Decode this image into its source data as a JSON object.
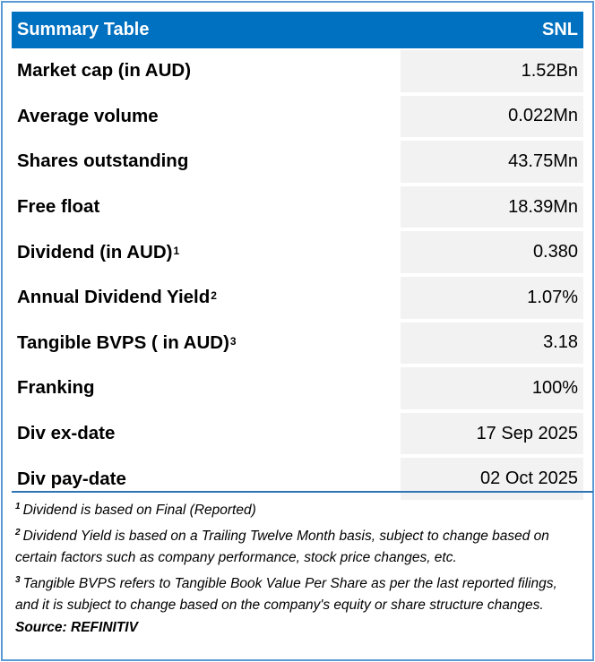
{
  "header": {
    "title": "Summary Table",
    "ticker": "SNL"
  },
  "colors": {
    "header_bg": "#0070c0",
    "value_bg": "#f2f2f2",
    "border": "#5b9bd5"
  },
  "rows": [
    {
      "label": "Market cap (in AUD)",
      "sup": "",
      "value": "1.52Bn"
    },
    {
      "label": "Average volume",
      "sup": "",
      "value": "0.022Mn"
    },
    {
      "label": "Shares outstanding",
      "sup": "",
      "value": "43.75Mn"
    },
    {
      "label": "Free float",
      "sup": "",
      "value": "18.39Mn"
    },
    {
      "label": "Dividend (in AUD)",
      "sup": "1",
      "value": "0.380"
    },
    {
      "label": "Annual Dividend Yield",
      "sup": "2",
      "value": "1.07%"
    },
    {
      "label": "Tangible BVPS ( in AUD)",
      "sup": "3",
      "value": "3.18"
    },
    {
      "label": "Franking",
      "sup": "",
      "value": "100%"
    },
    {
      "label": "Div ex-date",
      "sup": "",
      "value": "17 Sep 2025"
    },
    {
      "label": "Div pay-date",
      "sup": "",
      "value": "02 Oct 2025"
    }
  ],
  "footnotes": [
    {
      "num": "1",
      "text": "Dividend is based on Final (Reported)"
    },
    {
      "num": "2",
      "text": "Dividend Yield is based on a Trailing Twelve Month basis, subject to change based on certain factors such as company performance, stock price changes, etc."
    },
    {
      "num": "3",
      "text": "Tangible BVPS refers to Tangible Book Value Per Share as per the last reported filings, and it is subject to change based on the company's equity or share structure changes."
    }
  ],
  "source": "Source: REFINITIV"
}
